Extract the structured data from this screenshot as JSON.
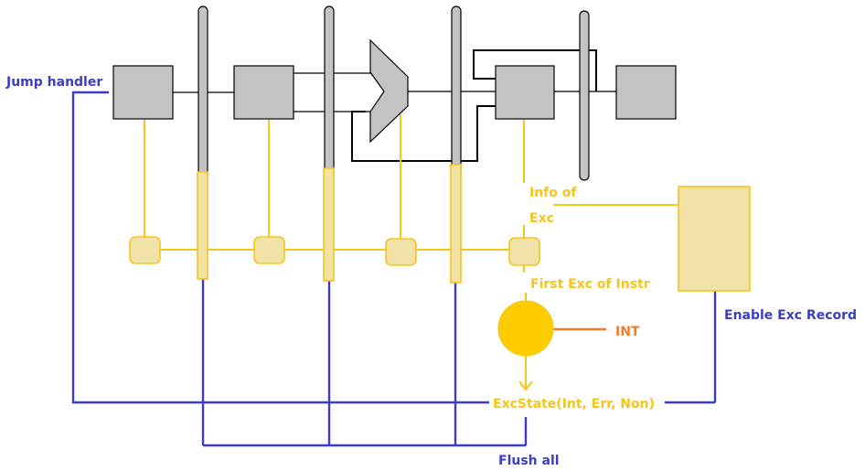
{
  "labels": {
    "jump_handler": "Jump handler",
    "info_line1": "Info of",
    "info_line2": "Exc",
    "first_exc": "First Exc of Instr",
    "int": "INT",
    "enable_exc_record": "Enable Exc Record",
    "exc_state": "ExcState(Int, Err, Non)",
    "flush_all": "Flush all"
  },
  "colors": {
    "stage_fill": "#c3c3c3",
    "exception_path": "#f5c518",
    "exception_fill": "#f1e2a7",
    "control_path": "#3c3cc6",
    "interrupt": "#f07c2a"
  }
}
